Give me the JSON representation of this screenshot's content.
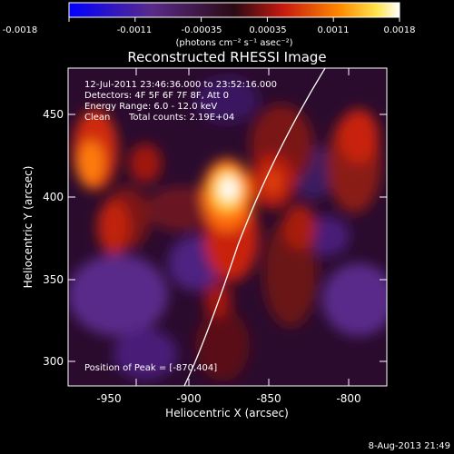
{
  "colorbar": {
    "ticks": [
      "-0.0018",
      "-0.0011",
      "-0.00035",
      "0.00035",
      "0.0011",
      "0.0018"
    ],
    "units": "(photons cm⁻² s⁻¹ asec⁻²)"
  },
  "title": "Reconstructed RHESSI Image",
  "info": {
    "time": "12-Jul-2011 23:46:36.000 to 23:52:16.000",
    "detectors": "Detectors: 4F 5F 6F 7F 8F, Att 0",
    "energy": "Energy Range: 6.0 - 12.0 keV",
    "method": "Clean",
    "counts": "Total counts: 2.19E+04"
  },
  "peak_label": "Position of Peak = [-870,404]",
  "xlabel": "Heliocentric X (arcsec)",
  "ylabel": "Heliocentric Y (arcsec)",
  "xticks": [
    "-950",
    "-900",
    "-850",
    "-800"
  ],
  "yticks": [
    "450",
    "400",
    "350",
    "300"
  ],
  "footer_date": "8-Aug-2013 21:49"
}
